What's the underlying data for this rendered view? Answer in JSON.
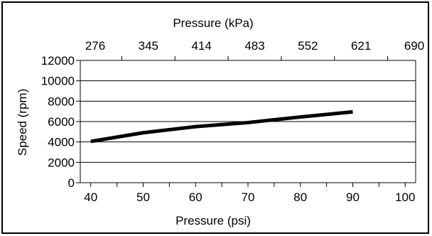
{
  "chart_data": {
    "type": "line",
    "x_top_label": "Pressure (kPa)",
    "x_top_ticks": [
      "276",
      "345",
      "414",
      "483",
      "552",
      "621",
      "690"
    ],
    "xlabel": "Pressure (psi)",
    "ylabel": "Speed (rpm)",
    "xlim": [
      38,
      102
    ],
    "ylim": [
      0,
      12000
    ],
    "x_ticks": [
      40,
      50,
      60,
      70,
      80,
      90,
      100
    ],
    "y_ticks": [
      0,
      2000,
      4000,
      6000,
      8000,
      10000,
      12000
    ],
    "grid": "horizontal",
    "legend": "none",
    "series": [
      {
        "x": [
          40,
          50,
          60,
          70,
          80,
          90
        ],
        "y": [
          4050,
          4900,
          5500,
          5900,
          6450,
          6950
        ],
        "color": "#000000"
      }
    ]
  }
}
